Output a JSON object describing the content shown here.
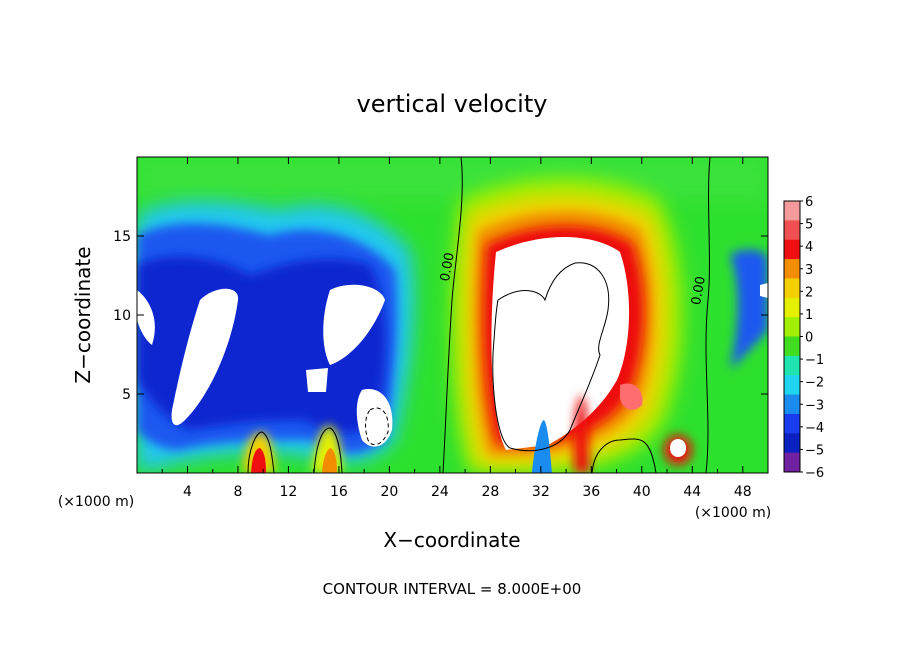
{
  "chart_data": {
    "type": "heatmap",
    "title": "vertical velocity",
    "xlabel": "X−coordinate",
    "ylabel": "Z−coordinate",
    "x_units_left": "(×1000 m)",
    "x_units_right": "(×1000 m)",
    "footer": "CONTOUR INTERVAL = 8.000E+00",
    "xlim": [
      0,
      50
    ],
    "ylim": [
      0,
      20
    ],
    "x_ticks": [
      4,
      8,
      12,
      16,
      20,
      24,
      28,
      32,
      36,
      40,
      44,
      48
    ],
    "x_tick_labels": [
      "4",
      "8",
      "12",
      "16",
      "20",
      "24",
      "28",
      "32",
      "36",
      "40",
      "44",
      "48"
    ],
    "y_ticks": [
      5,
      10,
      15
    ],
    "y_tick_labels": [
      "5",
      "10",
      "15"
    ],
    "contour_labels": [
      {
        "text": "0.00",
        "x": 24.9,
        "z": 13.0
      },
      {
        "text": "0.00",
        "x": 44.8,
        "z": 11.5
      }
    ],
    "colorbar": {
      "min": -6,
      "max": 6,
      "labels": [
        "6",
        "5",
        "4",
        "3",
        "2",
        "1",
        "0",
        "−1",
        "−2",
        "−3",
        "−4",
        "−5",
        "−6"
      ],
      "colors": [
        "#f49a9a",
        "#f05050",
        "#ee1010",
        "#f28c00",
        "#f4d000",
        "#e4f000",
        "#a0f000",
        "#40dc20",
        "#20e4b0",
        "#20d4f0",
        "#1a8cf0",
        "#1a3cf0",
        "#0a20c0",
        "#7020a0"
      ]
    },
    "features": [
      {
        "sign": "up",
        "x": 34.5,
        "z": 9.5,
        "peak": 8,
        "label": "main updraft core"
      },
      {
        "sign": "down",
        "x": 6.0,
        "z": 9.5,
        "peak": -8,
        "label": "left downdraft"
      },
      {
        "sign": "down",
        "x": 16.5,
        "z": 9.0,
        "peak": -7,
        "label": "central downdraft"
      },
      {
        "sign": "up",
        "x": 42.8,
        "z": 1.8,
        "peak": 6,
        "label": "low-level updraft"
      },
      {
        "sign": "up",
        "x": 9.5,
        "z": 1.0,
        "peak": 4,
        "label": "surface updraft"
      },
      {
        "sign": "up",
        "x": 15.5,
        "z": 1.2,
        "peak": 3,
        "label": "surface updraft"
      }
    ]
  }
}
